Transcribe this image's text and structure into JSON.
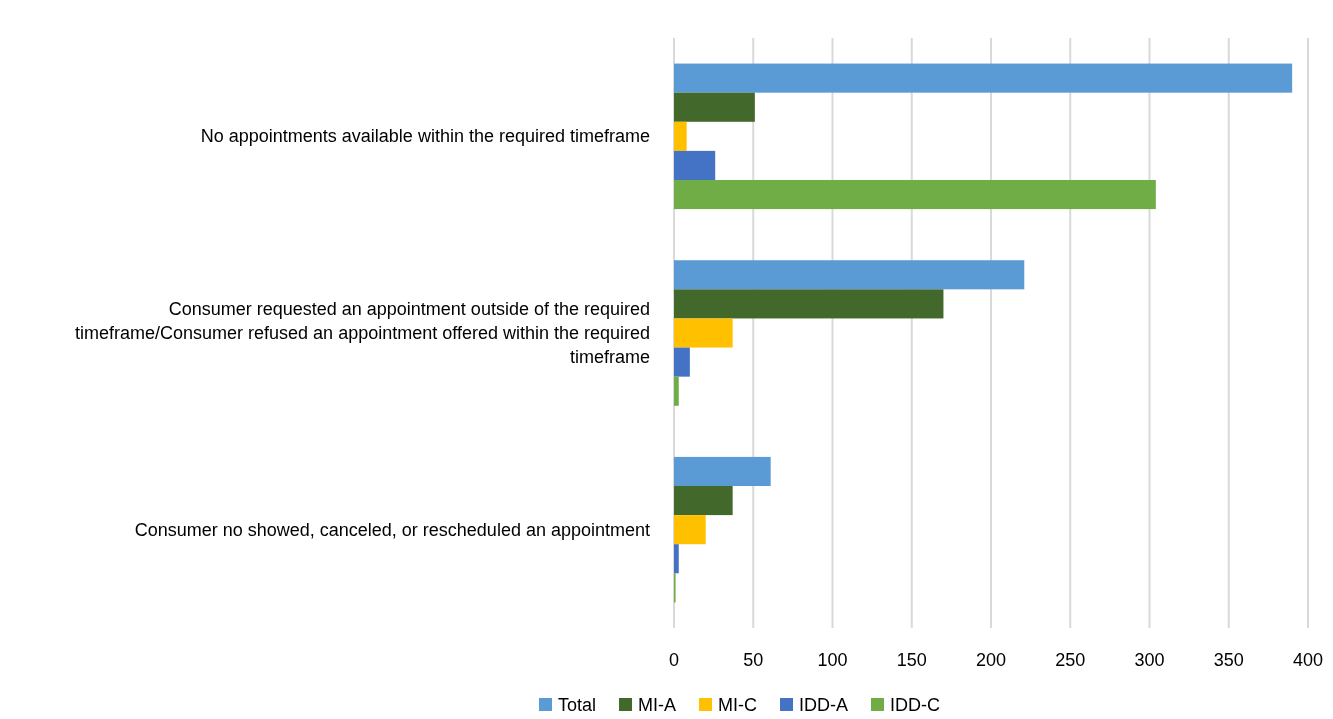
{
  "chart_data": {
    "type": "bar",
    "orientation": "horizontal",
    "categories": [
      "No appointments available within the required timeframe",
      "Consumer requested an appointment outside of the required timeframe/Consumer refused an appointment offered within the required timeframe",
      "Consumer no showed, canceled, or rescheduled an appointment"
    ],
    "series": [
      {
        "name": "Total",
        "color": "#5b9bd5",
        "values": [
          390,
          221,
          61
        ]
      },
      {
        "name": "MI-A",
        "color": "#43682b",
        "values": [
          51,
          170,
          37
        ]
      },
      {
        "name": "MI-C",
        "color": "#ffc000",
        "values": [
          8,
          37,
          20
        ]
      },
      {
        "name": "IDD-A",
        "color": "#4472c4",
        "values": [
          26,
          10,
          3
        ]
      },
      {
        "name": "IDD-C",
        "color": "#70ad47",
        "values": [
          304,
          3,
          1
        ]
      }
    ],
    "xlim": [
      0,
      400
    ],
    "xticks": [
      0,
      50,
      100,
      150,
      200,
      250,
      300,
      350,
      400
    ],
    "grid": "x",
    "legend": "bottom"
  }
}
